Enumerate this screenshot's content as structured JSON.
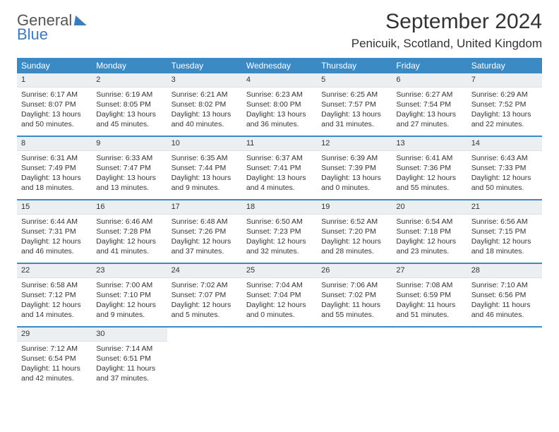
{
  "logo": {
    "line1": "General",
    "line2": "Blue"
  },
  "title": "September 2024",
  "location": "Penicuik, Scotland, United Kingdom",
  "colors": {
    "header_bg": "#3b8ac4",
    "header_text": "#ffffff",
    "daynum_bg": "#eceff1",
    "text": "#333333",
    "logo_blue": "#3b7bbf"
  },
  "day_names": [
    "Sunday",
    "Monday",
    "Tuesday",
    "Wednesday",
    "Thursday",
    "Friday",
    "Saturday"
  ],
  "weeks": [
    [
      {
        "n": "1",
        "sunrise": "6:17 AM",
        "sunset": "8:07 PM",
        "dl": "13 hours and 50 minutes."
      },
      {
        "n": "2",
        "sunrise": "6:19 AM",
        "sunset": "8:05 PM",
        "dl": "13 hours and 45 minutes."
      },
      {
        "n": "3",
        "sunrise": "6:21 AM",
        "sunset": "8:02 PM",
        "dl": "13 hours and 40 minutes."
      },
      {
        "n": "4",
        "sunrise": "6:23 AM",
        "sunset": "8:00 PM",
        "dl": "13 hours and 36 minutes."
      },
      {
        "n": "5",
        "sunrise": "6:25 AM",
        "sunset": "7:57 PM",
        "dl": "13 hours and 31 minutes."
      },
      {
        "n": "6",
        "sunrise": "6:27 AM",
        "sunset": "7:54 PM",
        "dl": "13 hours and 27 minutes."
      },
      {
        "n": "7",
        "sunrise": "6:29 AM",
        "sunset": "7:52 PM",
        "dl": "13 hours and 22 minutes."
      }
    ],
    [
      {
        "n": "8",
        "sunrise": "6:31 AM",
        "sunset": "7:49 PM",
        "dl": "13 hours and 18 minutes."
      },
      {
        "n": "9",
        "sunrise": "6:33 AM",
        "sunset": "7:47 PM",
        "dl": "13 hours and 13 minutes."
      },
      {
        "n": "10",
        "sunrise": "6:35 AM",
        "sunset": "7:44 PM",
        "dl": "13 hours and 9 minutes."
      },
      {
        "n": "11",
        "sunrise": "6:37 AM",
        "sunset": "7:41 PM",
        "dl": "13 hours and 4 minutes."
      },
      {
        "n": "12",
        "sunrise": "6:39 AM",
        "sunset": "7:39 PM",
        "dl": "13 hours and 0 minutes."
      },
      {
        "n": "13",
        "sunrise": "6:41 AM",
        "sunset": "7:36 PM",
        "dl": "12 hours and 55 minutes."
      },
      {
        "n": "14",
        "sunrise": "6:43 AM",
        "sunset": "7:33 PM",
        "dl": "12 hours and 50 minutes."
      }
    ],
    [
      {
        "n": "15",
        "sunrise": "6:44 AM",
        "sunset": "7:31 PM",
        "dl": "12 hours and 46 minutes."
      },
      {
        "n": "16",
        "sunrise": "6:46 AM",
        "sunset": "7:28 PM",
        "dl": "12 hours and 41 minutes."
      },
      {
        "n": "17",
        "sunrise": "6:48 AM",
        "sunset": "7:26 PM",
        "dl": "12 hours and 37 minutes."
      },
      {
        "n": "18",
        "sunrise": "6:50 AM",
        "sunset": "7:23 PM",
        "dl": "12 hours and 32 minutes."
      },
      {
        "n": "19",
        "sunrise": "6:52 AM",
        "sunset": "7:20 PM",
        "dl": "12 hours and 28 minutes."
      },
      {
        "n": "20",
        "sunrise": "6:54 AM",
        "sunset": "7:18 PM",
        "dl": "12 hours and 23 minutes."
      },
      {
        "n": "21",
        "sunrise": "6:56 AM",
        "sunset": "7:15 PM",
        "dl": "12 hours and 18 minutes."
      }
    ],
    [
      {
        "n": "22",
        "sunrise": "6:58 AM",
        "sunset": "7:12 PM",
        "dl": "12 hours and 14 minutes."
      },
      {
        "n": "23",
        "sunrise": "7:00 AM",
        "sunset": "7:10 PM",
        "dl": "12 hours and 9 minutes."
      },
      {
        "n": "24",
        "sunrise": "7:02 AM",
        "sunset": "7:07 PM",
        "dl": "12 hours and 5 minutes."
      },
      {
        "n": "25",
        "sunrise": "7:04 AM",
        "sunset": "7:04 PM",
        "dl": "12 hours and 0 minutes."
      },
      {
        "n": "26",
        "sunrise": "7:06 AM",
        "sunset": "7:02 PM",
        "dl": "11 hours and 55 minutes."
      },
      {
        "n": "27",
        "sunrise": "7:08 AM",
        "sunset": "6:59 PM",
        "dl": "11 hours and 51 minutes."
      },
      {
        "n": "28",
        "sunrise": "7:10 AM",
        "sunset": "6:56 PM",
        "dl": "11 hours and 46 minutes."
      }
    ],
    [
      {
        "n": "29",
        "sunrise": "7:12 AM",
        "sunset": "6:54 PM",
        "dl": "11 hours and 42 minutes."
      },
      {
        "n": "30",
        "sunrise": "7:14 AM",
        "sunset": "6:51 PM",
        "dl": "11 hours and 37 minutes."
      },
      null,
      null,
      null,
      null,
      null
    ]
  ],
  "labels": {
    "sunrise": "Sunrise:",
    "sunset": "Sunset:",
    "daylight": "Daylight:"
  }
}
